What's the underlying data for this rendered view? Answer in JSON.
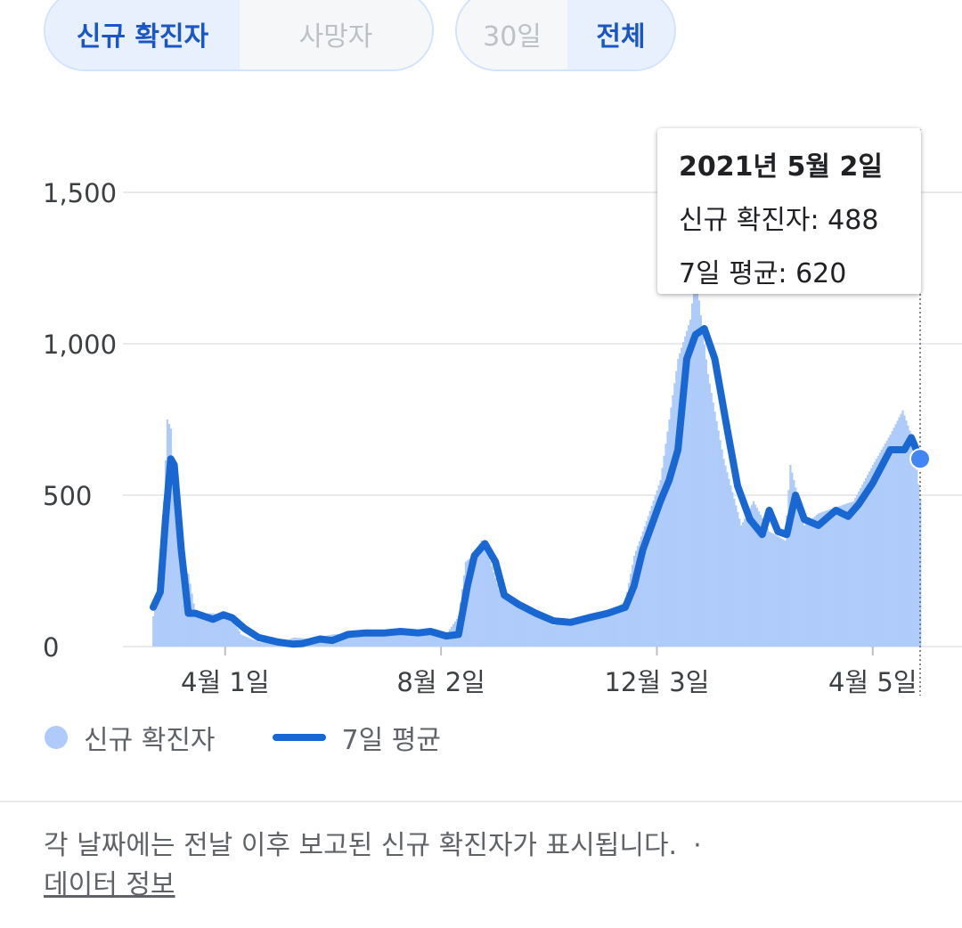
{
  "toggles": {
    "metric": [
      {
        "label": "신규 확진자",
        "active": true
      },
      {
        "label": "사망자",
        "active": false
      }
    ],
    "range": [
      {
        "label": "30일",
        "active": false
      },
      {
        "label": "전체",
        "active": true
      }
    ]
  },
  "tooltip": {
    "date": "2021년 5월 2일",
    "new_cases_text": "신규 확진자: 488",
    "avg_text": "7일 평균: 620"
  },
  "legend": {
    "cases_label": "신규 확진자",
    "avg_label": "7일 평균"
  },
  "footer": {
    "note": "각 날짜에는 전날 이후 보고된 신규 확진자가 표시됩니다.",
    "separator": "·",
    "link": "데이터 정보"
  },
  "colors": {
    "bars": "#aecbfa",
    "line": "#1967d2",
    "accent": "#1a56c5",
    "grid": "#e8eaed"
  },
  "chart_data": {
    "type": "bar",
    "ylim": [
      0,
      1600
    ],
    "yticks": [
      {
        "value": 0,
        "label": "0"
      },
      {
        "value": 500,
        "label": "500"
      },
      {
        "value": 1000,
        "label": "1,000"
      },
      {
        "value": 1500,
        "label": "1,500"
      }
    ],
    "xticks": [
      {
        "date": "2020-04-01",
        "label": "4월 1일"
      },
      {
        "date": "2020-08-02",
        "label": "8월 2일"
      },
      {
        "date": "2020-12-03",
        "label": "12월 3일"
      },
      {
        "date": "2021-04-05",
        "label": "4월 5일"
      }
    ],
    "series": [
      {
        "name": "신규 확진자",
        "kind": "bars",
        "points": [
          [
            "2020-02-20",
            100
          ],
          [
            "2020-02-23",
            220
          ],
          [
            "2020-02-26",
            480
          ],
          [
            "2020-02-28",
            750
          ],
          [
            "2020-03-01",
            720
          ],
          [
            "2020-03-03",
            520
          ],
          [
            "2020-03-06",
            380
          ],
          [
            "2020-03-08",
            250
          ],
          [
            "2020-03-11",
            240
          ],
          [
            "2020-03-15",
            110
          ],
          [
            "2020-03-20",
            110
          ],
          [
            "2020-03-25",
            110
          ],
          [
            "2020-03-31",
            100
          ],
          [
            "2020-04-05",
            90
          ],
          [
            "2020-04-10",
            40
          ],
          [
            "2020-04-20",
            15
          ],
          [
            "2020-05-01",
            8
          ],
          [
            "2020-05-10",
            30
          ],
          [
            "2020-05-20",
            25
          ],
          [
            "2020-06-01",
            40
          ],
          [
            "2020-06-15",
            45
          ],
          [
            "2020-07-01",
            50
          ],
          [
            "2020-07-15",
            45
          ],
          [
            "2020-07-25",
            55
          ],
          [
            "2020-08-05",
            40
          ],
          [
            "2020-08-12",
            100
          ],
          [
            "2020-08-16",
            280
          ],
          [
            "2020-08-20",
            300
          ],
          [
            "2020-08-25",
            350
          ],
          [
            "2020-08-28",
            320
          ],
          [
            "2020-09-05",
            170
          ],
          [
            "2020-09-15",
            130
          ],
          [
            "2020-09-25",
            100
          ],
          [
            "2020-10-05",
            70
          ],
          [
            "2020-10-15",
            80
          ],
          [
            "2020-10-25",
            90
          ],
          [
            "2020-11-05",
            110
          ],
          [
            "2020-11-15",
            150
          ],
          [
            "2020-11-20",
            300
          ],
          [
            "2020-11-25",
            380
          ],
          [
            "2020-12-05",
            550
          ],
          [
            "2020-12-15",
            950
          ],
          [
            "2020-12-22",
            1080
          ],
          [
            "2020-12-25",
            1240
          ],
          [
            "2021-01-01",
            900
          ],
          [
            "2021-01-10",
            620
          ],
          [
            "2021-01-20",
            400
          ],
          [
            "2021-01-27",
            480
          ],
          [
            "2021-02-05",
            380
          ],
          [
            "2021-02-14",
            350
          ],
          [
            "2021-02-17",
            600
          ],
          [
            "2021-02-25",
            400
          ],
          [
            "2021-03-05",
            440
          ],
          [
            "2021-03-15",
            460
          ],
          [
            "2021-03-25",
            480
          ],
          [
            "2021-04-05",
            600
          ],
          [
            "2021-04-15",
            700
          ],
          [
            "2021-04-22",
            780
          ],
          [
            "2021-04-28",
            680
          ],
          [
            "2021-05-02",
            488
          ]
        ]
      },
      {
        "name": "7일 평균",
        "kind": "line",
        "points": [
          [
            "2020-02-20",
            130
          ],
          [
            "2020-02-24",
            180
          ],
          [
            "2020-02-27",
            420
          ],
          [
            "2020-03-01",
            620
          ],
          [
            "2020-03-03",
            600
          ],
          [
            "2020-03-07",
            320
          ],
          [
            "2020-03-11",
            110
          ],
          [
            "2020-03-15",
            110
          ],
          [
            "2020-03-20",
            100
          ],
          [
            "2020-03-25",
            90
          ],
          [
            "2020-03-31",
            105
          ],
          [
            "2020-04-05",
            95
          ],
          [
            "2020-04-12",
            60
          ],
          [
            "2020-04-20",
            30
          ],
          [
            "2020-05-01",
            15
          ],
          [
            "2020-05-10",
            8
          ],
          [
            "2020-05-15",
            10
          ],
          [
            "2020-05-25",
            25
          ],
          [
            "2020-06-01",
            20
          ],
          [
            "2020-06-10",
            40
          ],
          [
            "2020-06-20",
            45
          ],
          [
            "2020-07-01",
            45
          ],
          [
            "2020-07-10",
            50
          ],
          [
            "2020-07-20",
            45
          ],
          [
            "2020-07-27",
            50
          ],
          [
            "2020-08-05",
            35
          ],
          [
            "2020-08-12",
            40
          ],
          [
            "2020-08-17",
            200
          ],
          [
            "2020-08-21",
            300
          ],
          [
            "2020-08-27",
            340
          ],
          [
            "2020-09-02",
            280
          ],
          [
            "2020-09-07",
            170
          ],
          [
            "2020-09-15",
            140
          ],
          [
            "2020-09-25",
            110
          ],
          [
            "2020-10-05",
            85
          ],
          [
            "2020-10-15",
            80
          ],
          [
            "2020-10-25",
            95
          ],
          [
            "2020-11-05",
            110
          ],
          [
            "2020-11-15",
            130
          ],
          [
            "2020-11-20",
            200
          ],
          [
            "2020-11-25",
            320
          ],
          [
            "2020-12-05",
            480
          ],
          [
            "2020-12-10",
            550
          ],
          [
            "2020-12-15",
            650
          ],
          [
            "2020-12-20",
            950
          ],
          [
            "2020-12-25",
            1030
          ],
          [
            "2020-12-30",
            1050
          ],
          [
            "2021-01-05",
            950
          ],
          [
            "2021-01-12",
            720
          ],
          [
            "2021-01-18",
            530
          ],
          [
            "2021-01-25",
            420
          ],
          [
            "2021-02-01",
            370
          ],
          [
            "2021-02-05",
            450
          ],
          [
            "2021-02-10",
            380
          ],
          [
            "2021-02-15",
            370
          ],
          [
            "2021-02-20",
            500
          ],
          [
            "2021-02-25",
            420
          ],
          [
            "2021-03-05",
            400
          ],
          [
            "2021-03-15",
            450
          ],
          [
            "2021-03-22",
            430
          ],
          [
            "2021-03-28",
            470
          ],
          [
            "2021-04-05",
            540
          ],
          [
            "2021-04-15",
            650
          ],
          [
            "2021-04-23",
            650
          ],
          [
            "2021-04-27",
            690
          ],
          [
            "2021-05-02",
            620
          ]
        ]
      }
    ],
    "highlight": {
      "date": "2021-05-02",
      "value": 620
    }
  }
}
